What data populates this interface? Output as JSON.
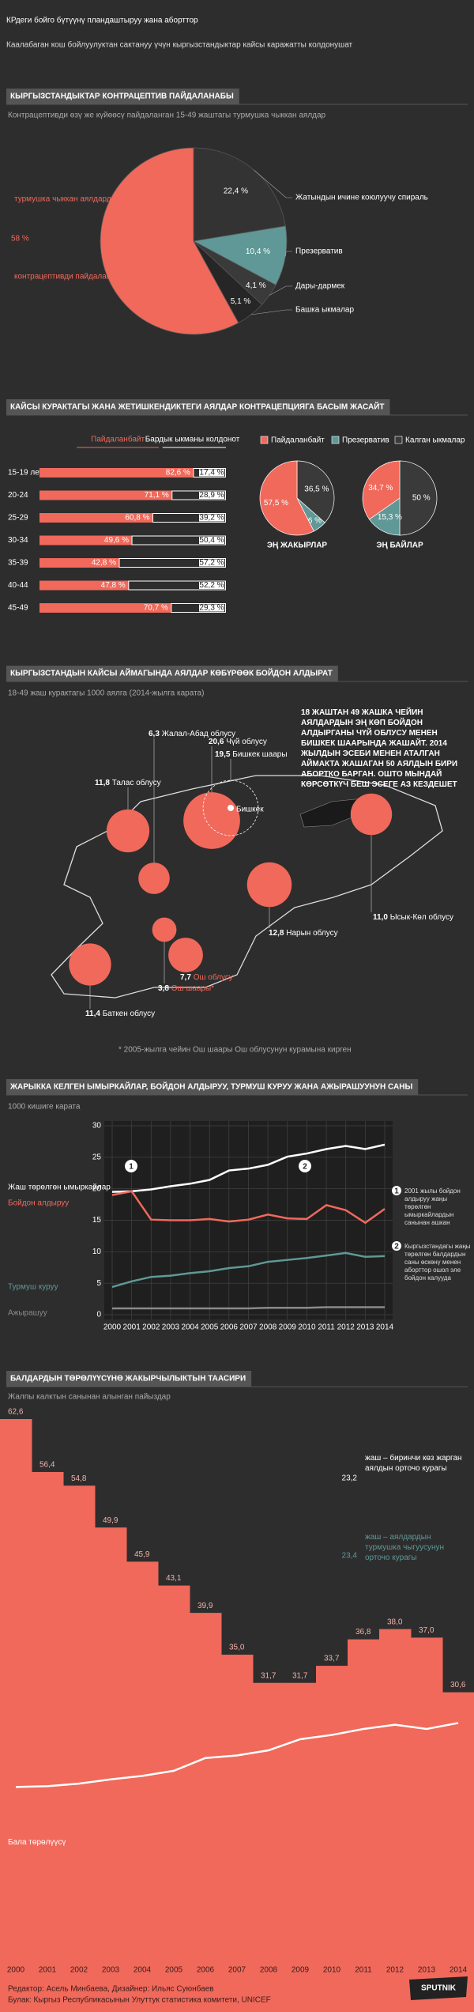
{
  "header": {
    "title": "КРдеги бойго бүтүүнү пландаштыруу жана аборттор",
    "subtitle": "Каалабаган кош бойлуулуктан сактануу үчүн кыргызстандыктар кайсы каражатты колдонушат"
  },
  "chart_data": [
    {
      "type": "pie",
      "title": "КЫРГЫЗСТАНДЫКТАР КОНТРАЦЕПТИВ ПАЙДАЛАНАБЫ",
      "subtitle": "Контрацептивди өзү же күйөөсү пайдаланган 15-49 жаштагы турмушка чыккан аялдар",
      "callout_top": "турмушка чыккан аялдардын",
      "callout_bottom": "контрацептивди пайдаланбайт",
      "categories": [
        "Жатындын ичине коюлуучу спираль",
        "Презерватив",
        "Дары-дармек",
        "Башка ыкмалар",
        null
      ],
      "values": [
        22.4,
        10.4,
        4.1,
        5.1,
        58
      ],
      "value_labels": [
        "22,4 %",
        "10,4 %",
        "4,1 %",
        "5,1 %",
        "58 %"
      ],
      "colors": [
        "#333333",
        "#5f9896",
        "#3a3a3a",
        "#262626",
        "#f0695b"
      ]
    },
    {
      "type": "stacked-hbar",
      "title": "КАЙСЫ КУРАКТАГЫ ЖАНА ЖЕТИШКЕНДИКТЕГИ АЯЛДАР КОНТРАЦЕПЦИЯГА БАСЫМ ЖАСАЙТ",
      "categories": [
        "15-19 лет",
        "20-24",
        "25-29",
        "30-34",
        "35-39",
        "40-44",
        "45-49"
      ],
      "series": [
        {
          "name": "Пайдаланбайт",
          "color": "#f0695b",
          "values": [
            82.6,
            71.1,
            60.8,
            49.6,
            42.8,
            47.8,
            70.7
          ],
          "value_labels": [
            "82,6 %",
            "71,1 %",
            "60,8 %",
            "49,6 %",
            "42,8 %",
            "47,8 %",
            "70,7 %"
          ]
        },
        {
          "name": "Бардык ыкманы колдонот",
          "color": "#ffffff",
          "values": [
            17.4,
            28.9,
            39.2,
            50.4,
            57.2,
            52.2,
            29.3
          ],
          "value_labels": [
            "17,4 %",
            "28,9 %",
            "39,2 %",
            "50,4 %",
            "57,2 %",
            "52,2 %",
            "29,3 %"
          ]
        }
      ]
    },
    {
      "type": "pies",
      "categories": [
        "Пайдаланбайт",
        "Презерватив",
        "Калган ыкмалар"
      ],
      "colors": [
        "#f0695b",
        "#5f9896",
        "#3a3a3a"
      ],
      "pies": [
        {
          "title": "ЭҢ ЖАКЫРЛАР",
          "values": [
            57.5,
            6,
            36.5
          ],
          "value_labels": [
            "57,5 %",
            "6 %",
            "36,5 %"
          ]
        },
        {
          "title": "ЭҢ БАЙЛАР",
          "values": [
            34.7,
            15.3,
            50
          ],
          "value_labels": [
            "34,7 %",
            "15,3 %",
            "50 %"
          ]
        }
      ]
    },
    {
      "type": "bubble-map",
      "title": "КЫРГЫЗСТАНДЫН КАЙСЫ АЙМАГЫНДА АЯЛДАР КӨБҮРӨӨК БОЙДОН АЛДЫРАТ",
      "subtitle": "18-49 жаш курактагы 1000 аялга (2014-жылга карата)",
      "note": "18 жаштан 49 жашка чейин аялдардын эң көп бойдон алдырганы Чүй облусу менен Бишкек шаарында жашайт. 2014 жылдын эсеби менен аталган аймакта жашаган 50 аялдын бири абортко барган. Ошто мындай көрсөткүч беш эсеге аз кездешет",
      "footnote": "* 2005-жылга чейин Ош шаары Ош облусунун курамына кирген",
      "city_label": "Бишкек",
      "color": "#f0695b",
      "categories": [
        "Талас облусу",
        "Чүй облусу",
        "Бишкек шаары",
        "Жалал-Абад облусу",
        "Ысык-Көл облусу",
        "Нарын облусу",
        "Ош облусу",
        "Ош шаары*",
        "Баткен облусу"
      ],
      "values": [
        11.8,
        20.6,
        19.5,
        6.3,
        11,
        12.8,
        7.7,
        3.8,
        11.4
      ],
      "value_labels": [
        "11,8",
        "20,6",
        "19,5",
        "6,3",
        "11,0",
        "12,8",
        "7,7",
        "3,8",
        "11,4"
      ]
    },
    {
      "type": "line",
      "title": "ЖАРЫККА КЕЛГЕН ЫМЫРКАЙЛАР, БОЙДОН АЛДЫРУУ, ТУРМУШ КУРУУ ЖАНА АЖЫРАШУУНУН САНЫ",
      "subtitle": "1000 кишиге карата",
      "x": [
        2000,
        2001,
        2002,
        2003,
        2004,
        2005,
        2006,
        2007,
        2008,
        2009,
        2010,
        2011,
        2012,
        2013,
        2014
      ],
      "xlim": [
        2000,
        2014
      ],
      "xticks": [
        2000,
        2001,
        2002,
        2003,
        2004,
        2005,
        2006,
        2007,
        2008,
        2009,
        2010,
        2011,
        2012,
        2013,
        2014
      ],
      "ylim": [
        0,
        30
      ],
      "yticks": [
        0,
        5,
        10,
        15,
        20,
        25,
        30
      ],
      "grid": true,
      "series": [
        {
          "name": "Жаш төрөлгөн ымыркайлар",
          "color": "#ffffff",
          "values": [
            19.5,
            19.6,
            19.9,
            20.4,
            20.8,
            21.4,
            22.9,
            23.2,
            23.8,
            25.1,
            25.6,
            26.3,
            26.8,
            26.3,
            27.0
          ]
        },
        {
          "name": "Бойдон алдыруу",
          "color": "#f0695b",
          "values": [
            19.0,
            19.6,
            15.1,
            15.0,
            15.0,
            15.2,
            14.8,
            15.1,
            15.9,
            15.3,
            15.2,
            17.4,
            16.6,
            14.6,
            16.8
          ]
        },
        {
          "name": "Турмуш куруу",
          "color": "#5f9896",
          "values": [
            4.4,
            5.3,
            6.0,
            6.2,
            6.6,
            6.9,
            7.4,
            7.7,
            8.4,
            8.7,
            9.0,
            9.4,
            9.8,
            9.2,
            9.3
          ]
        },
        {
          "name": "Ажырашуу",
          "color": "#8a8a8a",
          "values": [
            1.0,
            1.0,
            1.0,
            1.0,
            1.0,
            1.0,
            1.0,
            1.0,
            1.1,
            1.1,
            1.1,
            1.2,
            1.2,
            1.2,
            1.2
          ]
        }
      ],
      "annotations": [
        {
          "marker": "1",
          "text": "2001 жылы бойдон алдыруу жаңы төрөлгөн ымыркайлардын санынан ашкан"
        },
        {
          "marker": "2",
          "text": "Кыргызстандагы жаңы төрөлгөн балдардын саны өскөнү менен аборттор ошол эле бойдон калууда"
        }
      ]
    },
    {
      "type": "step-area",
      "title": "БАЛДАРДЫН ТӨРӨЛҮҮСҮНӨ ЖАКЫРЧЫЛЫКТЫН ТААСИРИ",
      "subtitle": "Жалпы калктын санынан алынган пайыздар",
      "categories": [
        "2000",
        "2001",
        "2002",
        "2003",
        "2004",
        "2005",
        "2006",
        "2007",
        "2008",
        "2009",
        "2010",
        "2011",
        "2012",
        "2013",
        "2014"
      ],
      "values": [
        62.6,
        56.4,
        54.8,
        49.9,
        45.9,
        43.1,
        39.9,
        35.0,
        31.7,
        31.7,
        33.7,
        36.8,
        38.0,
        37.0,
        30.6
      ],
      "value_labels": [
        "62,6",
        "56,4",
        "54,8",
        "49,9",
        "45,9",
        "43,1",
        "39,9",
        "35,0",
        "31,7",
        "31,7",
        "33,7",
        "36,8",
        "38,0",
        "37,0",
        "30,6"
      ],
      "color": "#f0695b",
      "line": {
        "name": "Бала төрөлүүсү",
        "color": "#ffffff",
        "values": [
          19.5,
          19.6,
          19.9,
          20.4,
          20.8,
          21.4,
          22.9,
          23.2,
          23.8,
          25.1,
          25.6,
          26.3,
          26.8,
          26.3,
          27.0
        ]
      },
      "stats": [
        {
          "value": "23,2",
          "text": "жаш – биринчи көз жарган аялдын орточо курагы",
          "color": "#ffffff"
        },
        {
          "value": "23,4",
          "text": "жаш – аялдардын турмушка чыгуусунун орточо курагы",
          "color": "#5f9896"
        }
      ]
    }
  ],
  "footer": {
    "credits": "Редактор: Асель Минбаева, Дизайнер: Ильяс Суюнбаев",
    "source": "Булак: Кыргыз Республикасынын Улуттук статистика комитети, UNICEF",
    "logo": "SPUTNIK"
  }
}
